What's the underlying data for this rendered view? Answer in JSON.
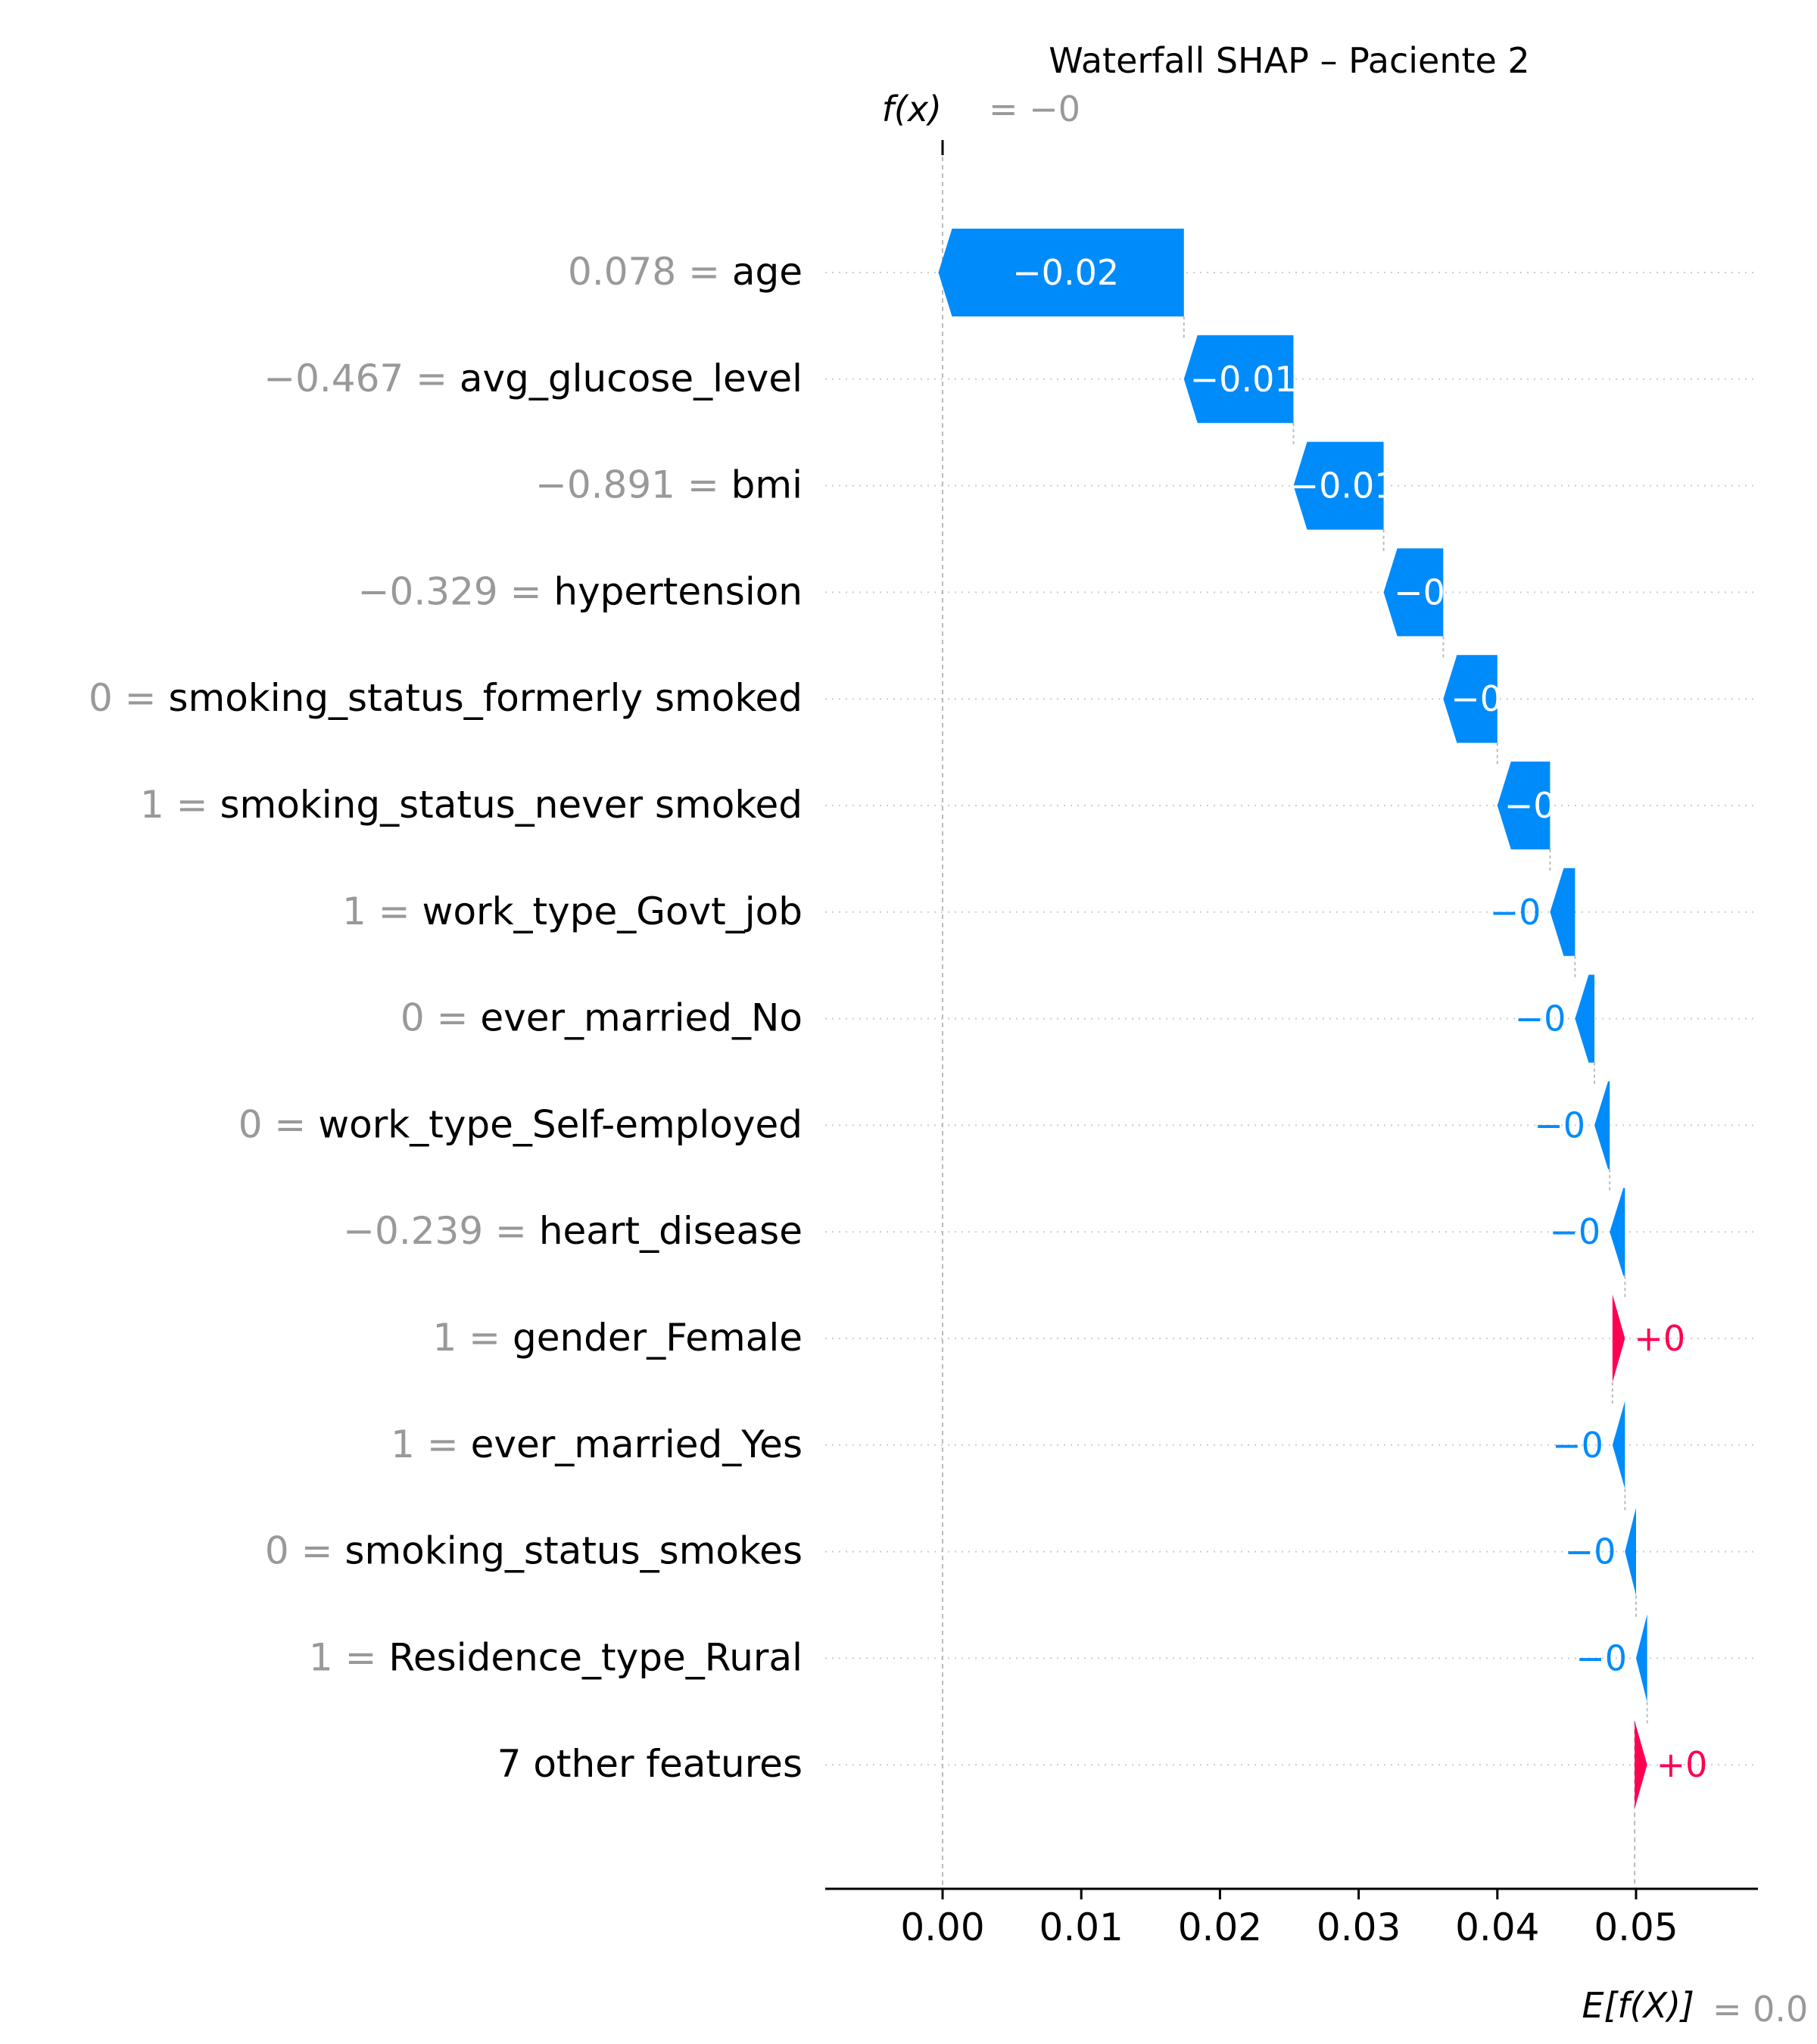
{
  "chart_data": {
    "type": "waterfall",
    "title": "Waterfall SHAP – Paciente 2",
    "fx_label": "f(x)",
    "fx_value_text": "= −0",
    "fx_value": 0.0,
    "efx_label": "E[f(X)]",
    "efx_value_text": "= 0.0",
    "base_value": 0.0499,
    "xlim": [
      -0.0085,
      0.0585
    ],
    "xticks": [
      0.0,
      0.01,
      0.02,
      0.03,
      0.04,
      0.05
    ],
    "xtick_labels": [
      "0.00",
      "0.01",
      "0.02",
      "0.03",
      "0.04",
      "0.05"
    ],
    "colors": {
      "negative": "#008bfb",
      "positive": "#ff0051",
      "value_text": "#999999"
    },
    "features": [
      {
        "value": "0.078",
        "name": "age",
        "shap": -0.0177,
        "label": "−0.02"
      },
      {
        "value": "−0.467",
        "name": "avg_glucose_level",
        "shap": -0.0079,
        "label": "−0.01"
      },
      {
        "value": "−0.891",
        "name": "bmi",
        "shap": -0.0065,
        "label": "−0.01"
      },
      {
        "value": "−0.329",
        "name": "hypertension",
        "shap": -0.0043,
        "label": "−0"
      },
      {
        "value": "0",
        "name": "smoking_status_formerly smoked",
        "shap": -0.0039,
        "label": "−0"
      },
      {
        "value": "1",
        "name": "smoking_status_never smoked",
        "shap": -0.0038,
        "label": "−0"
      },
      {
        "value": "1",
        "name": "work_type_Govt_job",
        "shap": -0.0018,
        "label": "−0"
      },
      {
        "value": "0",
        "name": "ever_married_No",
        "shap": -0.0014,
        "label": "−0"
      },
      {
        "value": "0",
        "name": "work_type_Self-employed",
        "shap": -0.0011,
        "label": "−0"
      },
      {
        "value": "−0.239",
        "name": "heart_disease",
        "shap": -0.0011,
        "label": "−0"
      },
      {
        "value": "1",
        "name": "gender_Female",
        "shap": 0.0009,
        "label": "+0"
      },
      {
        "value": "1",
        "name": "ever_married_Yes",
        "shap": -0.0009,
        "label": "−0"
      },
      {
        "value": "0",
        "name": "smoking_status_smokes",
        "shap": -0.0008,
        "label": "−0"
      },
      {
        "value": "1",
        "name": "Residence_type_Rural",
        "shap": -0.0008,
        "label": "−0"
      },
      {
        "value": "",
        "name": "7 other features",
        "shap": 0.0009,
        "label": "+0"
      }
    ]
  }
}
